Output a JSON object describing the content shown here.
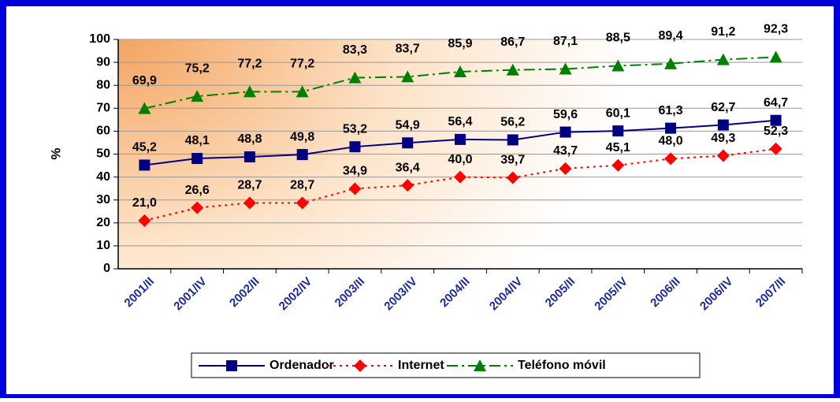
{
  "chart_data": {
    "type": "line",
    "y_label": "%",
    "categories": [
      "2001/II",
      "2001/IV",
      "2002/II",
      "2002/IV",
      "2003/II",
      "2003/IV",
      "2004/II",
      "2004/IV",
      "2005/II",
      "2005/IV",
      "2006/II",
      "2006/IV",
      "2007/II"
    ],
    "ylim": [
      0,
      100
    ],
    "yticks": [
      0,
      10,
      20,
      30,
      40,
      50,
      60,
      70,
      80,
      90,
      100
    ],
    "grid": true,
    "legend": "bottom",
    "series": [
      {
        "name": "Ordenador",
        "color": "#000080",
        "marker": "square",
        "dash": "solid",
        "values": [
          45.2,
          48.1,
          48.8,
          49.8,
          53.2,
          54.9,
          56.4,
          56.2,
          59.6,
          60.1,
          61.3,
          62.7,
          64.7
        ],
        "value_labels": [
          "45,2",
          "48,1",
          "48,8",
          "49,8",
          "53,2",
          "54,9",
          "56,4",
          "56,2",
          "59,6",
          "60,1",
          "61,3",
          "62,7",
          "64,7"
        ]
      },
      {
        "name": "Internet",
        "color": "#ff0000",
        "marker": "diamond",
        "dash": "dotted",
        "values": [
          21.0,
          26.6,
          28.7,
          28.7,
          34.9,
          36.4,
          40.0,
          39.7,
          43.7,
          45.1,
          48.0,
          49.3,
          52.3
        ],
        "value_labels": [
          "21,0",
          "26,6",
          "28,7",
          "28,7",
          "34,9",
          "36,4",
          "40,0",
          "39,7",
          "43,7",
          "45,1",
          "48,0",
          "49,3",
          "52,3"
        ]
      },
      {
        "name": "Teléfono móvil",
        "color": "#008000",
        "marker": "triangle",
        "dash": "dashdot",
        "values": [
          69.9,
          75.2,
          77.2,
          77.2,
          83.3,
          83.7,
          85.9,
          86.7,
          87.1,
          88.5,
          89.4,
          91.2,
          92.3
        ],
        "value_labels": [
          "69,9",
          "75,2",
          "77,2",
          "77,2",
          "83,3",
          "83,7",
          "85,9",
          "86,7",
          "87,1",
          "88,5",
          "89,4",
          "91,2",
          "92,3"
        ]
      }
    ]
  }
}
